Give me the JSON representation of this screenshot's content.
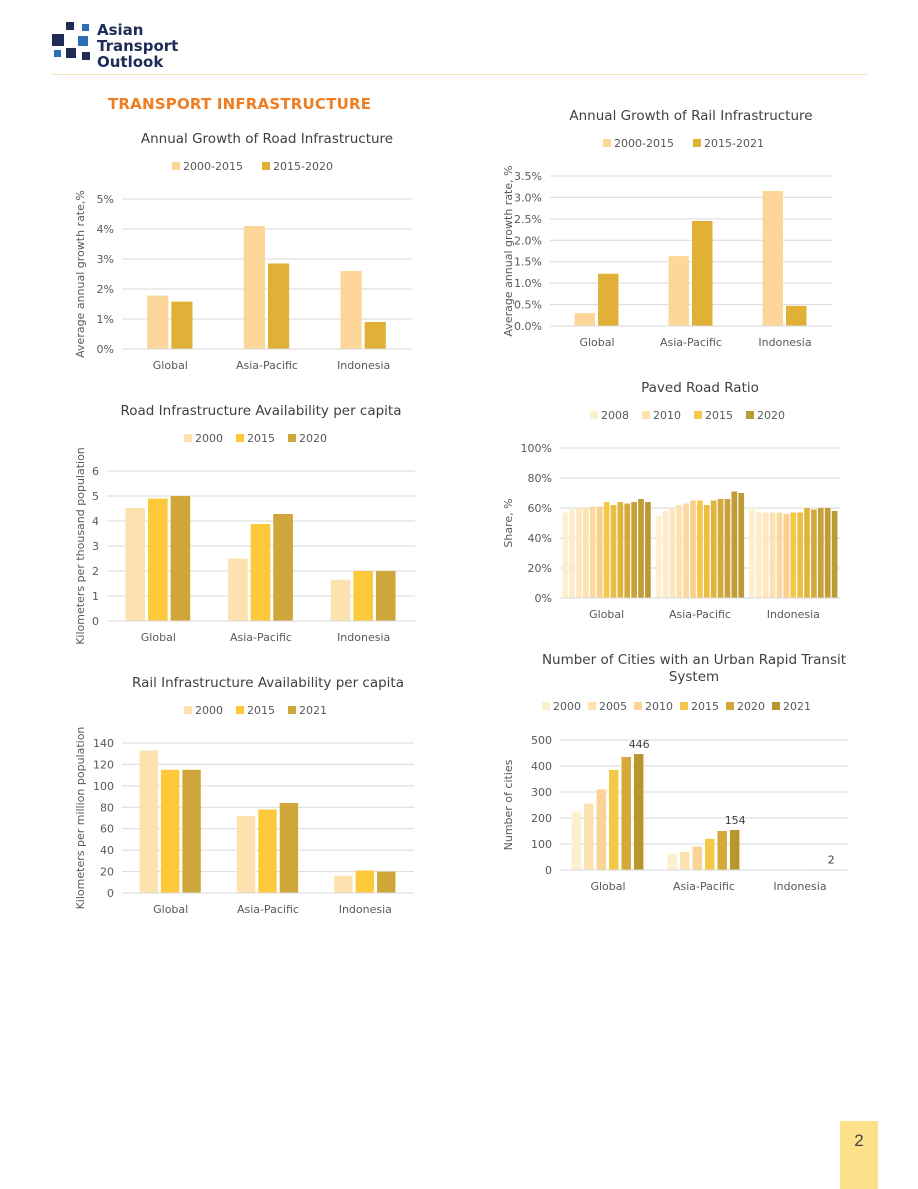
{
  "header": {
    "logo_lines": [
      "Asian",
      "Transport",
      "Outlook"
    ],
    "section_title": "TRANSPORT INFRASTRUCTURE"
  },
  "page": {
    "number": "2"
  },
  "colors": {
    "c1": "#fdd79a",
    "c2": "#e0b136",
    "c3": "#fec83b",
    "c4": "#cfa63a",
    "p2008": "#fdf0cf",
    "p2010": "#fde2b0",
    "p2015": "#f6c84a",
    "p2020": "#bc9a34",
    "u2000": "#fdf0cf",
    "u2005": "#fde2b0",
    "u2010": "#fcd396",
    "u2015": "#f6c84a",
    "u2020": "#d4a93c",
    "u2021": "#b8952e"
  },
  "chart_data": [
    {
      "id": "road-growth",
      "type": "bar",
      "title": "Annual Growth of Road Infrastructure",
      "ylabel": "Average annual growth rate,%",
      "categories": [
        "Global",
        "Asia-Pacific",
        "Indonesia"
      ],
      "series": [
        {
          "name": "2000-2015",
          "values": [
            1.78,
            4.1,
            2.6
          ],
          "color": "#fdd79a"
        },
        {
          "name": "2015-2020",
          "values": [
            1.58,
            2.85,
            0.9
          ],
          "color": "#e0b136"
        }
      ],
      "yticks": [
        "0%",
        "1%",
        "2%",
        "3%",
        "4%",
        "5%"
      ],
      "ylim": [
        0,
        5
      ]
    },
    {
      "id": "rail-growth",
      "type": "bar",
      "title": "Annual Growth of Rail Infrastructure",
      "ylabel": "Average annual growth rate, %",
      "categories": [
        "Global",
        "Asia-Pacific",
        "Indonesia"
      ],
      "series": [
        {
          "name": "2000-2015",
          "values": [
            0.3,
            1.63,
            3.15
          ],
          "color": "#fdd79a"
        },
        {
          "name": "2015-2021",
          "values": [
            1.22,
            2.45,
            0.47
          ],
          "color": "#e0b136"
        }
      ],
      "yticks": [
        "0.0%",
        "0.5%",
        "1.0%",
        "1.5%",
        "2.0%",
        "2.5%",
        "3.0%",
        "3.5%"
      ],
      "ylim": [
        0,
        3.5
      ]
    },
    {
      "id": "road-availability",
      "type": "bar",
      "title": "Road Infrastructure Availability per capita",
      "ylabel": "Kilometers per thousand population",
      "categories": [
        "Global",
        "Asia-Pacific",
        "Indonesia"
      ],
      "series": [
        {
          "name": "2000",
          "values": [
            4.52,
            2.5,
            1.65
          ],
          "color": "#fde2b0"
        },
        {
          "name": "2015",
          "values": [
            4.9,
            3.88,
            2.0
          ],
          "color": "#fec83b"
        },
        {
          "name": "2020",
          "values": [
            5.0,
            4.28,
            2.0
          ],
          "color": "#cfa63a"
        }
      ],
      "yticks": [
        "0",
        "1",
        "2",
        "3",
        "4",
        "5",
        "6"
      ],
      "ylim": [
        0,
        6
      ]
    },
    {
      "id": "paved-ratio",
      "type": "bar",
      "title": "Paved Road Ratio",
      "ylabel": "Share, %",
      "categories": [
        "Global",
        "Asia-Pacific",
        "Indonesia"
      ],
      "legend": [
        {
          "name": "2008",
          "color": "#fdf0cf"
        },
        {
          "name": "2010",
          "color": "#fde2b0"
        },
        {
          "name": "2015",
          "color": "#f6c84a"
        },
        {
          "name": "2020",
          "color": "#bc9a34"
        }
      ],
      "groups": [
        [
          57,
          59,
          60,
          60,
          61,
          61,
          64,
          62,
          64,
          63,
          64,
          66,
          64
        ],
        [
          55,
          58,
          60,
          62,
          63,
          65,
          65,
          62,
          65,
          66,
          66,
          71,
          70
        ],
        [
          60,
          57,
          57,
          57,
          57,
          56,
          57,
          57,
          60,
          59,
          60,
          60,
          58
        ]
      ],
      "bar_colors": [
        "#fdf0cf",
        "#fdeccc",
        "#fde6c0",
        "#fde2b0",
        "#fad9a0",
        "#f8d08a",
        "#f6c84a",
        "#eabf44",
        "#dfb43f",
        "#d4a93c",
        "#c9a03a",
        "#c19c37",
        "#bc9a34"
      ],
      "yticks": [
        "0%",
        "20%",
        "40%",
        "60%",
        "80%",
        "100%"
      ],
      "ylim": [
        0,
        100
      ]
    },
    {
      "id": "rail-availability",
      "type": "bar",
      "title": "Rail Infrastructure Availability per capita",
      "ylabel": "Kilometers per million population",
      "categories": [
        "Global",
        "Asia-Pacific",
        "Indonesia"
      ],
      "series": [
        {
          "name": "2000",
          "values": [
            133,
            72,
            16
          ],
          "color": "#fde2b0"
        },
        {
          "name": "2015",
          "values": [
            115,
            78,
            21
          ],
          "color": "#fec83b"
        },
        {
          "name": "2021",
          "values": [
            115,
            84,
            20
          ],
          "color": "#cfa63a"
        }
      ],
      "yticks": [
        "0",
        "20",
        "40",
        "60",
        "80",
        "100",
        "120",
        "140"
      ],
      "ylim": [
        0,
        140
      ]
    },
    {
      "id": "urban-transit",
      "type": "bar",
      "title_lines": [
        "Number of Cities with an Urban Rapid Transit",
        "System"
      ],
      "ylabel": "Number of cities",
      "categories": [
        "Global",
        "Asia-Pacific",
        "Indonesia"
      ],
      "series": [
        {
          "name": "2000",
          "values": [
            225,
            62,
            0
          ],
          "color": "#fdf0cf"
        },
        {
          "name": "2005",
          "values": [
            255,
            70,
            0
          ],
          "color": "#fde2b0"
        },
        {
          "name": "2010",
          "values": [
            310,
            90,
            0
          ],
          "color": "#fcd396"
        },
        {
          "name": "2015",
          "values": [
            385,
            120,
            0
          ],
          "color": "#f6c84a"
        },
        {
          "name": "2020",
          "values": [
            435,
            150,
            2
          ],
          "color": "#d4a93c"
        },
        {
          "name": "2021",
          "values": [
            446,
            154,
            2
          ],
          "color": "#b8952e"
        }
      ],
      "data_labels": [
        {
          "category": 0,
          "series": 5,
          "text": "446"
        },
        {
          "category": 1,
          "series": 5,
          "text": "154"
        },
        {
          "category": 2,
          "series": 5,
          "text": "2"
        }
      ],
      "yticks": [
        "0",
        "100",
        "200",
        "300",
        "400",
        "500"
      ],
      "ylim": [
        0,
        500
      ]
    }
  ]
}
